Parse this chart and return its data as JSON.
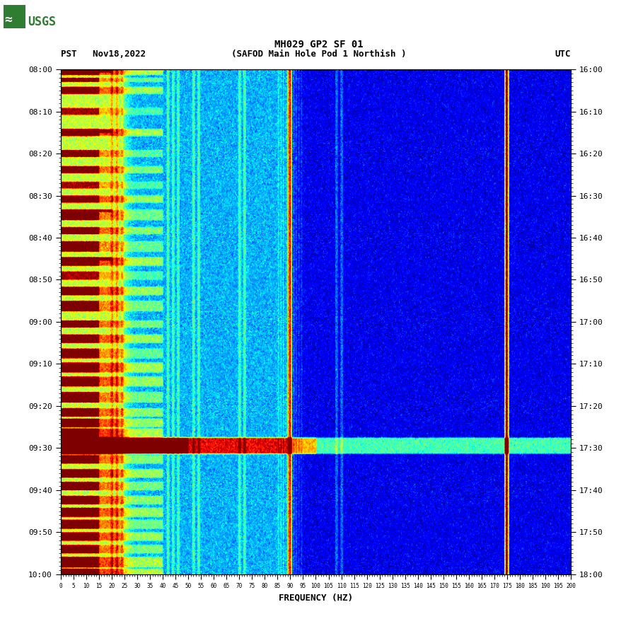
{
  "title_line1": "MH029 GP2 SF 01",
  "title_line2": "(SAFOD Main Hole Pod 1 Northish )",
  "left_label": "PST   Nov18,2022",
  "right_label": "UTC",
  "xlabel": "FREQUENCY (HZ)",
  "freq_min": 0,
  "freq_max": 200,
  "freq_ticks": [
    0,
    5,
    10,
    15,
    20,
    25,
    30,
    35,
    40,
    45,
    50,
    55,
    60,
    65,
    70,
    75,
    80,
    85,
    90,
    95,
    100,
    105,
    110,
    115,
    120,
    125,
    130,
    135,
    140,
    145,
    150,
    155,
    160,
    165,
    170,
    175,
    180,
    185,
    190,
    195,
    200
  ],
  "time_ticks_pst": [
    "08:00",
    "08:10",
    "08:20",
    "08:30",
    "08:40",
    "08:50",
    "09:00",
    "09:10",
    "09:20",
    "09:30",
    "09:40",
    "09:50",
    "10:00"
  ],
  "time_ticks_utc": [
    "16:00",
    "16:10",
    "16:20",
    "16:30",
    "16:40",
    "16:50",
    "17:00",
    "17:10",
    "17:20",
    "17:30",
    "17:40",
    "17:50",
    "18:00"
  ],
  "background_color": "#ffffff",
  "fig_width": 9.02,
  "fig_height": 8.92
}
